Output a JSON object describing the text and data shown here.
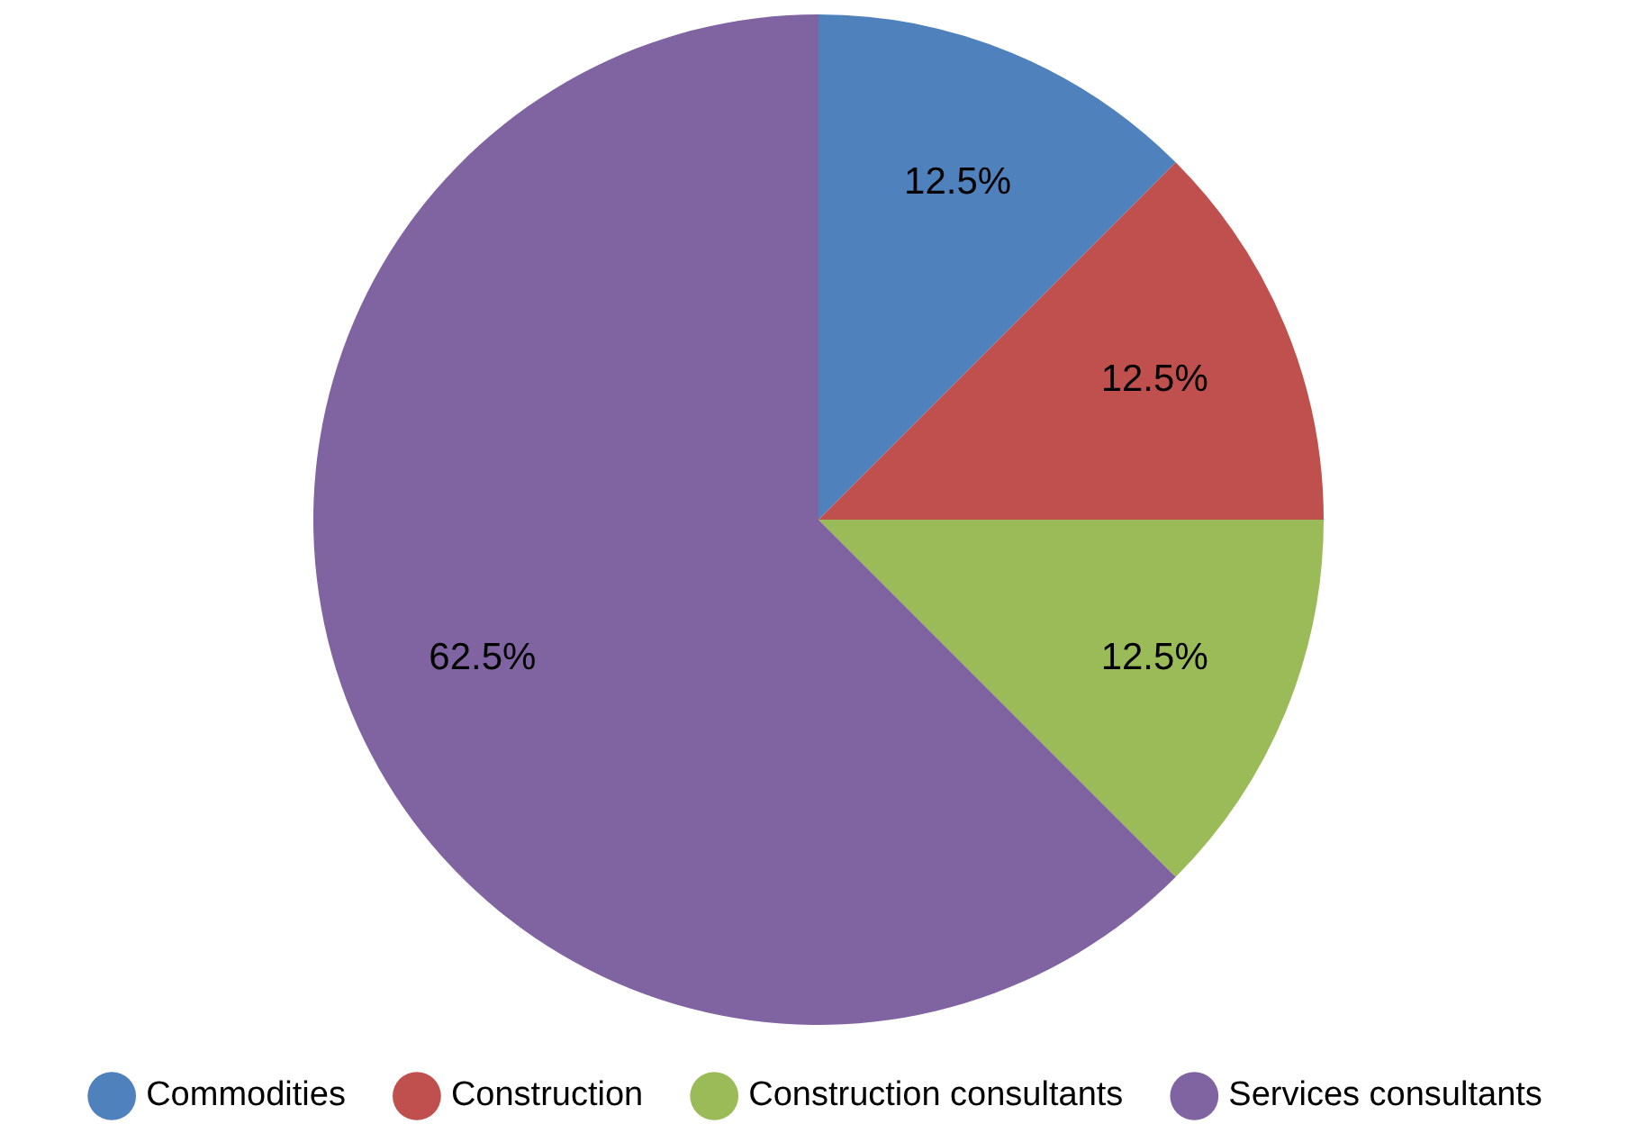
{
  "chart_data": {
    "type": "pie",
    "categories": [
      "Commodities",
      "Construction",
      "Construction consultants",
      "Services consultants"
    ],
    "values": [
      12.5,
      12.5,
      12.5,
      62.5
    ],
    "colors": [
      "#4f81bd",
      "#c0504d",
      "#9bbb59",
      "#8064a2"
    ],
    "value_labels": [
      "12.5%",
      "12.5%",
      "12.5%",
      "62.5%"
    ],
    "legend": "bottom"
  }
}
